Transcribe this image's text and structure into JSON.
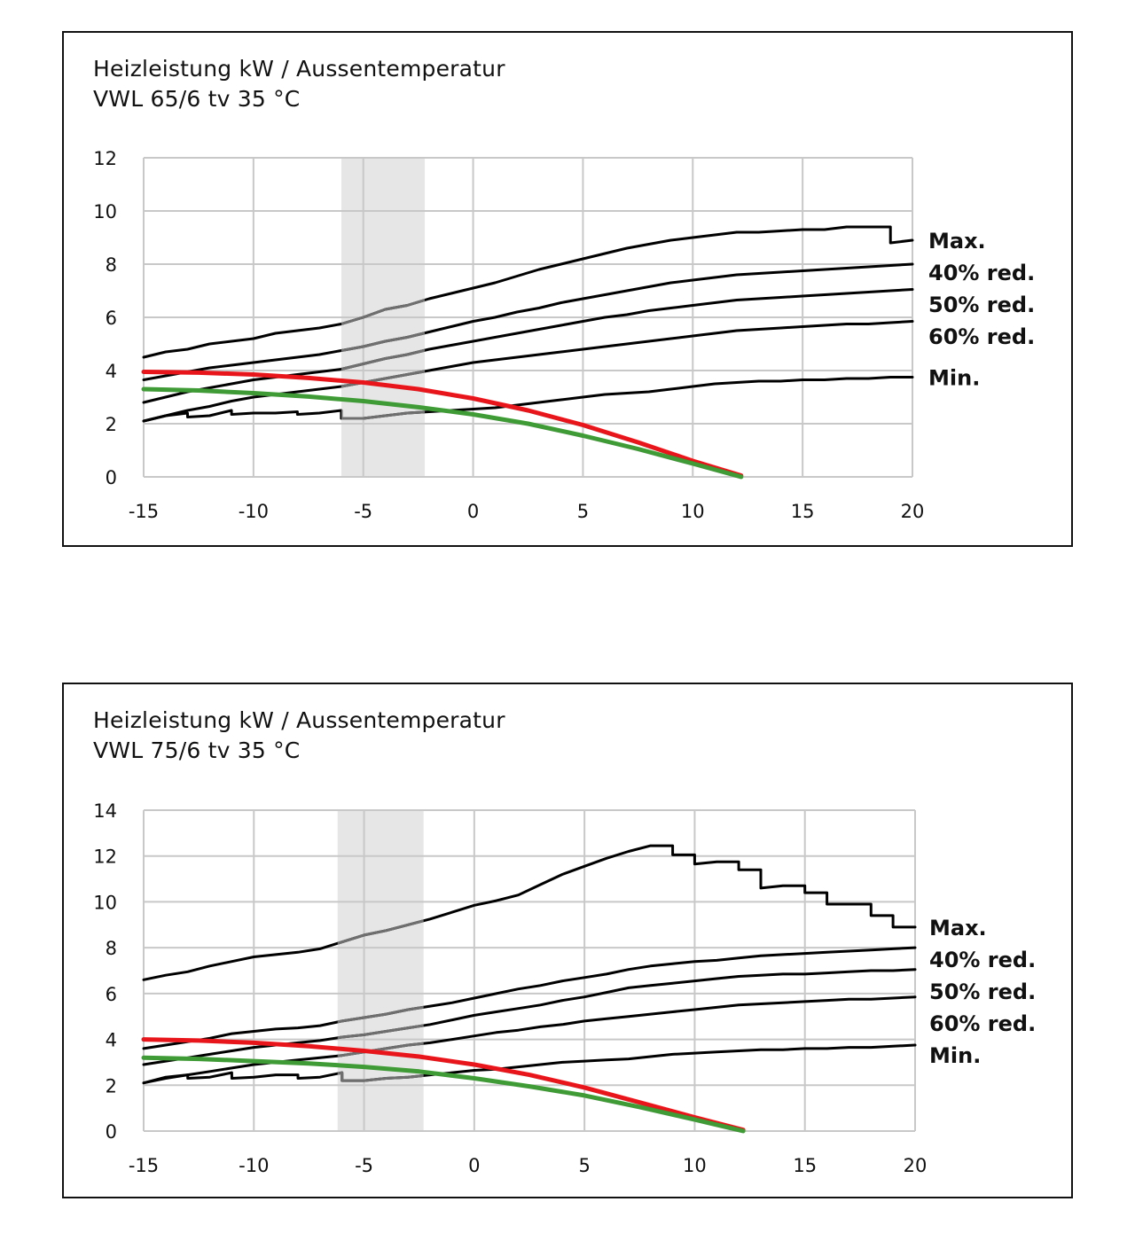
{
  "chart_data": [
    {
      "type": "line",
      "title": "Heizleistung kW / Aussentemperatur",
      "subtitle": "VWL 65/6 tv 35 °C",
      "xlabel": "",
      "ylabel": "",
      "xlim": [
        -15,
        20
      ],
      "ylim": [
        0,
        12
      ],
      "xticks": [
        -15,
        -10,
        -5,
        0,
        5,
        10,
        15,
        20
      ],
      "yticks": [
        0,
        2,
        4,
        6,
        8,
        10,
        12
      ],
      "grid": true,
      "shaded_band": [
        -6,
        -2.2
      ],
      "colors": {
        "performance": "#000000",
        "shaded": "#e6e6e6",
        "grid": "#c8c8c8",
        "in_band": "#6f6f6f",
        "red_curve": "#e8161b",
        "green_curve": "#3f9b35"
      },
      "series": [
        {
          "name": "Max.",
          "color": "#000000",
          "x": [
            -15,
            -14,
            -13,
            -12,
            -11,
            -10,
            -9,
            -8,
            -7,
            -6,
            -5,
            -4,
            -3,
            -2,
            -1,
            0,
            1,
            2,
            3,
            4,
            5,
            6,
            7,
            8,
            9,
            10,
            11,
            12,
            13,
            14,
            15,
            16,
            17,
            18,
            19,
            19,
            20
          ],
          "y": [
            4.5,
            4.7,
            4.8,
            5.0,
            5.1,
            5.2,
            5.4,
            5.5,
            5.6,
            5.75,
            6.0,
            6.3,
            6.45,
            6.7,
            6.9,
            7.1,
            7.3,
            7.55,
            7.8,
            8.0,
            8.2,
            8.4,
            8.6,
            8.75,
            8.9,
            9.0,
            9.1,
            9.2,
            9.2,
            9.25,
            9.3,
            9.3,
            9.4,
            9.4,
            9.4,
            8.8,
            8.9
          ]
        },
        {
          "name": "40% red.",
          "color": "#000000",
          "x": [
            -15,
            -14,
            -13,
            -12,
            -11,
            -10,
            -9,
            -8,
            -7,
            -6,
            -5,
            -4,
            -3,
            -2,
            -1,
            0,
            1,
            2,
            3,
            4,
            5,
            6,
            7,
            8,
            9,
            10,
            11,
            12,
            13,
            14,
            15,
            16,
            17,
            18,
            19,
            20
          ],
          "y": [
            3.65,
            3.8,
            3.95,
            4.1,
            4.2,
            4.3,
            4.4,
            4.5,
            4.6,
            4.75,
            4.9,
            5.1,
            5.25,
            5.45,
            5.65,
            5.85,
            6.0,
            6.2,
            6.35,
            6.55,
            6.7,
            6.85,
            7.0,
            7.15,
            7.3,
            7.4,
            7.5,
            7.6,
            7.65,
            7.7,
            7.75,
            7.8,
            7.85,
            7.9,
            7.95,
            8.0
          ]
        },
        {
          "name": "50% red.",
          "color": "#000000",
          "x": [
            -15,
            -14,
            -13,
            -12,
            -11,
            -10,
            -9,
            -8,
            -7,
            -6,
            -5,
            -4,
            -3,
            -2,
            -1,
            0,
            1,
            2,
            3,
            4,
            5,
            6,
            7,
            8,
            9,
            10,
            11,
            12,
            13,
            14,
            15,
            16,
            17,
            18,
            19,
            20
          ],
          "y": [
            2.8,
            3.0,
            3.2,
            3.35,
            3.5,
            3.65,
            3.75,
            3.85,
            3.95,
            4.05,
            4.25,
            4.45,
            4.6,
            4.8,
            4.95,
            5.1,
            5.25,
            5.4,
            5.55,
            5.7,
            5.85,
            6.0,
            6.1,
            6.25,
            6.35,
            6.45,
            6.55,
            6.65,
            6.7,
            6.75,
            6.8,
            6.85,
            6.9,
            6.95,
            7.0,
            7.05
          ]
        },
        {
          "name": "60% red.",
          "color": "#000000",
          "x": [
            -15,
            -14,
            -13,
            -12,
            -11,
            -10,
            -9,
            -8,
            -7,
            -6,
            -5,
            -4,
            -3,
            -2,
            -1,
            0,
            1,
            2,
            3,
            4,
            5,
            6,
            7,
            8,
            9,
            10,
            11,
            12,
            13,
            14,
            15,
            16,
            17,
            18,
            19,
            20
          ],
          "y": [
            2.1,
            2.3,
            2.5,
            2.65,
            2.85,
            3.0,
            3.1,
            3.2,
            3.3,
            3.4,
            3.55,
            3.7,
            3.85,
            4.0,
            4.15,
            4.3,
            4.4,
            4.5,
            4.6,
            4.7,
            4.8,
            4.9,
            5.0,
            5.1,
            5.2,
            5.3,
            5.4,
            5.5,
            5.55,
            5.6,
            5.65,
            5.7,
            5.75,
            5.75,
            5.8,
            5.85
          ]
        },
        {
          "name": "Min.",
          "color": "#000000",
          "x": [
            -15,
            -14,
            -13,
            -13,
            -12,
            -11,
            -11,
            -10,
            -9,
            -8,
            -8,
            -7,
            -6,
            -6,
            -5,
            -4,
            -3,
            -2,
            -1,
            0,
            1,
            2,
            3,
            4,
            5,
            6,
            7,
            8,
            9,
            10,
            11,
            12,
            13,
            14,
            15,
            16,
            17,
            18,
            19,
            20
          ],
          "y": [
            2.1,
            2.3,
            2.4,
            2.25,
            2.3,
            2.5,
            2.35,
            2.4,
            2.4,
            2.45,
            2.35,
            2.4,
            2.5,
            2.2,
            2.2,
            2.3,
            2.4,
            2.45,
            2.5,
            2.55,
            2.6,
            2.7,
            2.8,
            2.9,
            3.0,
            3.1,
            3.15,
            3.2,
            3.3,
            3.4,
            3.5,
            3.55,
            3.6,
            3.6,
            3.65,
            3.65,
            3.7,
            3.7,
            3.75,
            3.75
          ]
        },
        {
          "name": "",
          "color": "#e8161b",
          "x": [
            -15,
            -12.5,
            -10,
            -7.5,
            -5,
            -2.5,
            0,
            2.5,
            5,
            7.5,
            10,
            12.2
          ],
          "y": [
            3.95,
            3.92,
            3.85,
            3.72,
            3.55,
            3.3,
            2.95,
            2.5,
            1.95,
            1.3,
            0.6,
            0.05
          ]
        },
        {
          "name": "",
          "color": "#3f9b35",
          "x": [
            -15,
            -12.5,
            -10,
            -7.5,
            -5,
            -2.5,
            0,
            2.5,
            5,
            7.5,
            10,
            12.2
          ],
          "y": [
            3.3,
            3.25,
            3.15,
            3.02,
            2.85,
            2.62,
            2.35,
            2.0,
            1.55,
            1.05,
            0.5,
            0.0
          ]
        }
      ]
    },
    {
      "type": "line",
      "title": "Heizleistung kW / Aussentemperatur",
      "subtitle": "VWL 75/6 tv 35 °C",
      "xlabel": "",
      "ylabel": "",
      "xlim": [
        -15,
        20
      ],
      "ylim": [
        0,
        14
      ],
      "xticks": [
        -15,
        -10,
        -5,
        0,
        5,
        10,
        15,
        20
      ],
      "yticks": [
        0,
        2,
        4,
        6,
        8,
        10,
        12,
        14
      ],
      "grid": true,
      "shaded_band": [
        -6.2,
        -2.3
      ],
      "colors": {
        "performance": "#000000",
        "shaded": "#e6e6e6",
        "grid": "#c8c8c8",
        "in_band": "#6f6f6f",
        "red_curve": "#e8161b",
        "green_curve": "#3f9b35"
      },
      "series": [
        {
          "name": "Max.",
          "color": "#000000",
          "x": [
            -15,
            -14,
            -13,
            -12,
            -11,
            -10,
            -9,
            -8,
            -7,
            -6,
            -5,
            -4,
            -3,
            -2,
            -1,
            0,
            1,
            2,
            3,
            4,
            5,
            6,
            7,
            8,
            9,
            9,
            10,
            10,
            11,
            12,
            12,
            13,
            13,
            14,
            15,
            15,
            16,
            16,
            17,
            18,
            18,
            19,
            19,
            20
          ],
          "y": [
            6.6,
            6.8,
            6.95,
            7.2,
            7.4,
            7.6,
            7.7,
            7.8,
            7.95,
            8.25,
            8.55,
            8.75,
            9.0,
            9.25,
            9.55,
            9.85,
            10.05,
            10.3,
            10.75,
            11.2,
            11.55,
            11.9,
            12.2,
            12.45,
            12.45,
            12.05,
            12.05,
            11.65,
            11.75,
            11.75,
            11.4,
            11.4,
            10.6,
            10.7,
            10.7,
            10.4,
            10.4,
            9.9,
            9.9,
            9.9,
            9.4,
            9.4,
            8.9,
            8.9
          ]
        },
        {
          "name": "40% red.",
          "color": "#000000",
          "x": [
            -15,
            -14,
            -13,
            -12,
            -11,
            -10,
            -9,
            -8,
            -7,
            -6,
            -5,
            -4,
            -3,
            -2,
            -1,
            0,
            1,
            2,
            3,
            4,
            5,
            6,
            7,
            8,
            9,
            10,
            11,
            12,
            13,
            14,
            15,
            16,
            17,
            18,
            19,
            20
          ],
          "y": [
            3.6,
            3.75,
            3.9,
            4.05,
            4.25,
            4.35,
            4.45,
            4.5,
            4.6,
            4.8,
            4.95,
            5.1,
            5.3,
            5.45,
            5.6,
            5.8,
            6.0,
            6.2,
            6.35,
            6.55,
            6.7,
            6.85,
            7.05,
            7.2,
            7.3,
            7.4,
            7.45,
            7.55,
            7.65,
            7.7,
            7.75,
            7.8,
            7.85,
            7.9,
            7.95,
            8.0
          ]
        },
        {
          "name": "50% red.",
          "color": "#000000",
          "x": [
            -15,
            -14,
            -13,
            -12,
            -11,
            -10,
            -9,
            -8,
            -7,
            -6,
            -5,
            -4,
            -3,
            -2,
            -1,
            0,
            1,
            2,
            3,
            4,
            5,
            6,
            7,
            8,
            9,
            10,
            11,
            12,
            13,
            14,
            15,
            16,
            17,
            18,
            19,
            20
          ],
          "y": [
            2.9,
            3.05,
            3.2,
            3.35,
            3.5,
            3.65,
            3.75,
            3.85,
            3.95,
            4.1,
            4.2,
            4.35,
            4.5,
            4.65,
            4.85,
            5.05,
            5.2,
            5.35,
            5.5,
            5.7,
            5.85,
            6.05,
            6.25,
            6.35,
            6.45,
            6.55,
            6.65,
            6.75,
            6.8,
            6.85,
            6.85,
            6.9,
            6.95,
            7.0,
            7.0,
            7.05
          ]
        },
        {
          "name": "60% red.",
          "color": "#000000",
          "x": [
            -15,
            -14,
            -13,
            -12,
            -11,
            -10,
            -9,
            -8,
            -7,
            -6,
            -5,
            -4,
            -3,
            -2,
            -1,
            0,
            1,
            2,
            3,
            4,
            5,
            6,
            7,
            8,
            9,
            10,
            11,
            12,
            13,
            14,
            15,
            16,
            17,
            18,
            19,
            20
          ],
          "y": [
            2.1,
            2.3,
            2.45,
            2.6,
            2.75,
            2.9,
            3.0,
            3.1,
            3.2,
            3.3,
            3.45,
            3.6,
            3.75,
            3.85,
            4.0,
            4.15,
            4.3,
            4.4,
            4.55,
            4.65,
            4.8,
            4.9,
            5.0,
            5.1,
            5.2,
            5.3,
            5.4,
            5.5,
            5.55,
            5.6,
            5.65,
            5.7,
            5.75,
            5.75,
            5.8,
            5.85
          ]
        },
        {
          "name": "Min.",
          "color": "#000000",
          "x": [
            -15,
            -14,
            -13,
            -13,
            -12,
            -11,
            -11,
            -10,
            -9,
            -8,
            -8,
            -7,
            -6,
            -6,
            -5,
            -4,
            -3,
            -2,
            -1,
            0,
            1,
            2,
            3,
            4,
            5,
            6,
            7,
            8,
            9,
            10,
            11,
            12,
            13,
            14,
            15,
            16,
            17,
            18,
            19,
            20
          ],
          "y": [
            2.1,
            2.35,
            2.45,
            2.3,
            2.35,
            2.55,
            2.3,
            2.35,
            2.45,
            2.45,
            2.3,
            2.35,
            2.55,
            2.2,
            2.2,
            2.3,
            2.35,
            2.45,
            2.55,
            2.65,
            2.7,
            2.8,
            2.9,
            3.0,
            3.05,
            3.1,
            3.15,
            3.25,
            3.35,
            3.4,
            3.45,
            3.5,
            3.55,
            3.55,
            3.6,
            3.6,
            3.65,
            3.65,
            3.7,
            3.75
          ]
        },
        {
          "name": "",
          "color": "#e8161b",
          "x": [
            -15,
            -12.5,
            -10,
            -7.5,
            -5,
            -2.5,
            0,
            2.5,
            5,
            7.5,
            10,
            12.2
          ],
          "y": [
            4.0,
            3.95,
            3.85,
            3.7,
            3.5,
            3.25,
            2.9,
            2.45,
            1.9,
            1.25,
            0.6,
            0.05
          ]
        },
        {
          "name": "",
          "color": "#3f9b35",
          "x": [
            -15,
            -12.5,
            -10,
            -7.5,
            -5,
            -2.5,
            0,
            2.5,
            5,
            7.5,
            10,
            12.2
          ],
          "y": [
            3.2,
            3.15,
            3.05,
            2.95,
            2.8,
            2.6,
            2.3,
            1.95,
            1.55,
            1.05,
            0.5,
            0.0
          ]
        }
      ]
    }
  ]
}
